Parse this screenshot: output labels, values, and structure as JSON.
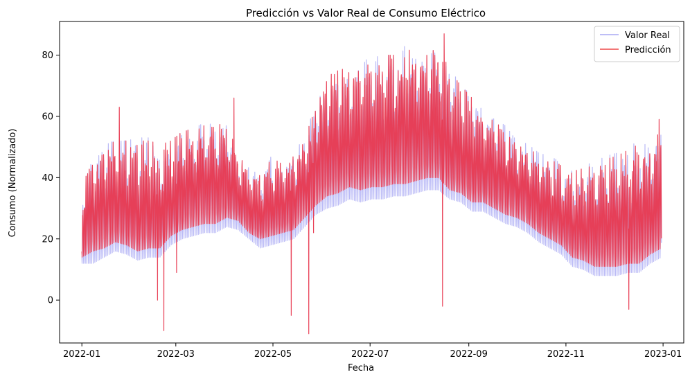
{
  "chart_data": {
    "type": "line",
    "title": "Predicción vs Valor Real de Consumo Eléctrico",
    "xlabel": "Fecha",
    "ylabel": "Consumo (Normalizado)",
    "xlim": [
      "2021-12-18",
      "2023-01-14"
    ],
    "ylim": [
      -14,
      91
    ],
    "grid": false,
    "legend_position": "top-right",
    "x_ticks": [
      "2022-01-01",
      "2022-03-01",
      "2022-05-01",
      "2022-07-01",
      "2022-09-01",
      "2022-11-01",
      "2023-01-01"
    ],
    "x_tick_labels": [
      "2022-01",
      "2022-03",
      "2022-05",
      "2022-07",
      "2022-09",
      "2022-11",
      "2023-01"
    ],
    "y_ticks": [
      0,
      20,
      40,
      60,
      80
    ],
    "y_tick_labels": [
      "0",
      "20",
      "40",
      "60",
      "80"
    ],
    "series": [
      {
        "name": "Valor Real",
        "color": "#8c8cf0",
        "alpha": 0.6,
        "points": [
          [
            "2022-01-01",
            12,
            37
          ],
          [
            "2022-01-08",
            12,
            48
          ],
          [
            "2022-01-15",
            14,
            51
          ],
          [
            "2022-01-22",
            16,
            52
          ],
          [
            "2022-01-29",
            15,
            52
          ],
          [
            "2022-02-05",
            13,
            53
          ],
          [
            "2022-02-12",
            14,
            53
          ],
          [
            "2022-02-19",
            14,
            51
          ],
          [
            "2022-02-26",
            18,
            52
          ],
          [
            "2022-03-05",
            20,
            55
          ],
          [
            "2022-03-12",
            21,
            56
          ],
          [
            "2022-03-19",
            22,
            58
          ],
          [
            "2022-03-26",
            22,
            57
          ],
          [
            "2022-04-02",
            24,
            58
          ],
          [
            "2022-04-09",
            23,
            48
          ],
          [
            "2022-04-16",
            20,
            43
          ],
          [
            "2022-04-23",
            17,
            41
          ],
          [
            "2022-04-30",
            18,
            47
          ],
          [
            "2022-05-07",
            19,
            45
          ],
          [
            "2022-05-14",
            20,
            49
          ],
          [
            "2022-05-21",
            24,
            53
          ],
          [
            "2022-05-28",
            28,
            65
          ],
          [
            "2022-06-04",
            30,
            73
          ],
          [
            "2022-06-11",
            31,
            75
          ],
          [
            "2022-06-18",
            33,
            76
          ],
          [
            "2022-06-25",
            32,
            78
          ],
          [
            "2022-07-02",
            33,
            79
          ],
          [
            "2022-07-09",
            33,
            80
          ],
          [
            "2022-07-16",
            34,
            80
          ],
          [
            "2022-07-23",
            34,
            83
          ],
          [
            "2022-07-30",
            35,
            81
          ],
          [
            "2022-08-06",
            36,
            80
          ],
          [
            "2022-08-13",
            36,
            83
          ],
          [
            "2022-08-20",
            33,
            76
          ],
          [
            "2022-08-27",
            32,
            70
          ],
          [
            "2022-09-03",
            29,
            67
          ],
          [
            "2022-09-10",
            29,
            63
          ],
          [
            "2022-09-17",
            27,
            59
          ],
          [
            "2022-09-24",
            25,
            57
          ],
          [
            "2022-10-01",
            24,
            52
          ],
          [
            "2022-10-08",
            22,
            51
          ],
          [
            "2022-10-15",
            19,
            48
          ],
          [
            "2022-10-22",
            17,
            47
          ],
          [
            "2022-10-29",
            15,
            45
          ],
          [
            "2022-11-05",
            11,
            42
          ],
          [
            "2022-11-12",
            10,
            44
          ],
          [
            "2022-11-19",
            8,
            45
          ],
          [
            "2022-11-26",
            8,
            47
          ],
          [
            "2022-12-03",
            8,
            48
          ],
          [
            "2022-12-10",
            9,
            50
          ],
          [
            "2022-12-17",
            9,
            52
          ],
          [
            "2022-12-24",
            12,
            53
          ],
          [
            "2022-12-31",
            14,
            56
          ]
        ]
      },
      {
        "name": "Predicción",
        "color": "#e8384f",
        "alpha": 0.95,
        "points": [
          [
            "2022-01-01",
            14,
            36
          ],
          [
            "2022-01-08",
            16,
            48
          ],
          [
            "2022-01-15",
            17,
            50
          ],
          [
            "2022-01-22",
            19,
            52
          ],
          [
            "2022-01-29",
            18,
            52
          ],
          [
            "2022-02-05",
            16,
            52
          ],
          [
            "2022-02-12",
            17,
            52
          ],
          [
            "2022-02-19",
            17,
            51
          ],
          [
            "2022-02-26",
            21,
            52
          ],
          [
            "2022-03-05",
            23,
            55
          ],
          [
            "2022-03-12",
            24,
            56
          ],
          [
            "2022-03-19",
            25,
            57
          ],
          [
            "2022-03-26",
            25,
            57
          ],
          [
            "2022-04-02",
            27,
            58
          ],
          [
            "2022-04-09",
            26,
            48
          ],
          [
            "2022-04-16",
            22,
            43
          ],
          [
            "2022-04-23",
            20,
            41
          ],
          [
            "2022-04-30",
            21,
            46
          ],
          [
            "2022-05-07",
            22,
            45
          ],
          [
            "2022-05-14",
            23,
            49
          ],
          [
            "2022-05-21",
            27,
            52
          ],
          [
            "2022-05-28",
            31,
            65
          ],
          [
            "2022-06-04",
            34,
            73
          ],
          [
            "2022-06-11",
            35,
            75
          ],
          [
            "2022-06-18",
            37,
            76
          ],
          [
            "2022-06-25",
            36,
            78
          ],
          [
            "2022-07-02",
            37,
            79
          ],
          [
            "2022-07-09",
            37,
            80
          ],
          [
            "2022-07-16",
            38,
            80
          ],
          [
            "2022-07-23",
            38,
            82
          ],
          [
            "2022-07-30",
            39,
            81
          ],
          [
            "2022-08-06",
            40,
            80
          ],
          [
            "2022-08-13",
            40,
            83
          ],
          [
            "2022-08-20",
            36,
            75
          ],
          [
            "2022-08-27",
            35,
            70
          ],
          [
            "2022-09-03",
            32,
            66
          ],
          [
            "2022-09-10",
            32,
            62
          ],
          [
            "2022-09-17",
            30,
            58
          ],
          [
            "2022-09-24",
            28,
            56
          ],
          [
            "2022-10-01",
            27,
            52
          ],
          [
            "2022-10-08",
            25,
            50
          ],
          [
            "2022-10-15",
            22,
            47
          ],
          [
            "2022-10-22",
            20,
            46
          ],
          [
            "2022-10-29",
            18,
            44
          ],
          [
            "2022-11-05",
            14,
            42
          ],
          [
            "2022-11-12",
            13,
            43
          ],
          [
            "2022-11-19",
            11,
            44
          ],
          [
            "2022-11-26",
            11,
            46
          ],
          [
            "2022-12-03",
            11,
            47
          ],
          [
            "2022-12-10",
            12,
            49
          ],
          [
            "2022-12-17",
            12,
            51
          ],
          [
            "2022-12-24",
            15,
            52
          ],
          [
            "2022-12-31",
            17,
            55
          ]
        ],
        "spikes": [
          [
            "2022-01-24",
            63
          ],
          [
            "2022-02-17",
            0
          ],
          [
            "2022-02-21",
            -10
          ],
          [
            "2022-03-01",
            9
          ],
          [
            "2022-04-06",
            66
          ],
          [
            "2022-05-12",
            -5
          ],
          [
            "2022-05-23",
            -11
          ],
          [
            "2022-05-26",
            22
          ],
          [
            "2022-08-15",
            -2
          ],
          [
            "2022-08-16",
            87
          ],
          [
            "2022-12-10",
            -3
          ],
          [
            "2022-12-29",
            59
          ]
        ]
      }
    ]
  }
}
